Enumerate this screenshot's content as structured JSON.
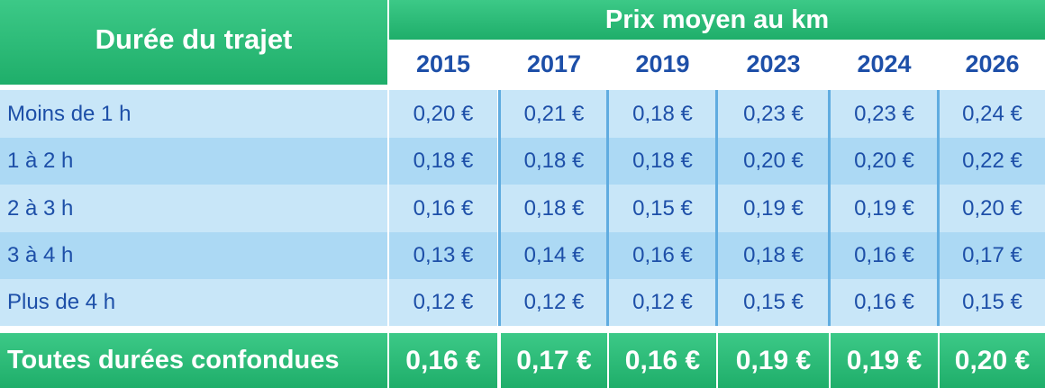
{
  "header": {
    "left_title": "Durée du trajet",
    "span_title": "Prix moyen au km",
    "years": [
      "2015",
      "2017",
      "2019",
      "2023",
      "2024",
      "2026"
    ]
  },
  "rows": [
    {
      "label": "Moins de 1 h",
      "values": [
        "0,20 €",
        "0,21 €",
        "0,18 €",
        "0,23 €",
        "0,23 €",
        "0,24 €"
      ]
    },
    {
      "label": "1 à 2 h",
      "values": [
        "0,18 €",
        "0,18 €",
        "0,18 €",
        "0,20 €",
        "0,20 €",
        "0,22 €"
      ]
    },
    {
      "label": "2 à 3 h",
      "values": [
        "0,16 €",
        "0,18 €",
        "0,15 €",
        "0,19 €",
        "0,19 €",
        "0,20 €"
      ]
    },
    {
      "label": "3 à 4 h",
      "values": [
        "0,13 €",
        "0,14 €",
        "0,16 €",
        "0,18 €",
        "0,16 €",
        "0,17 €"
      ]
    },
    {
      "label": "Plus de 4 h",
      "values": [
        "0,12 €",
        "0,12 €",
        "0,12 €",
        "0,15 €",
        "0,16 €",
        "0,15 €"
      ]
    }
  ],
  "total": {
    "label": "Toutes durées confondues",
    "values": [
      "0,16 €",
      "0,17 €",
      "0,16 €",
      "0,19 €",
      "0,19 €",
      "0,20 €"
    ]
  },
  "colors": {
    "header_green": "#2fbf7a",
    "text_blue": "#1d4fa8",
    "row_light": "#c8e6f8",
    "row_dark": "#acd9f4",
    "separator_blue": "#60ace0"
  }
}
